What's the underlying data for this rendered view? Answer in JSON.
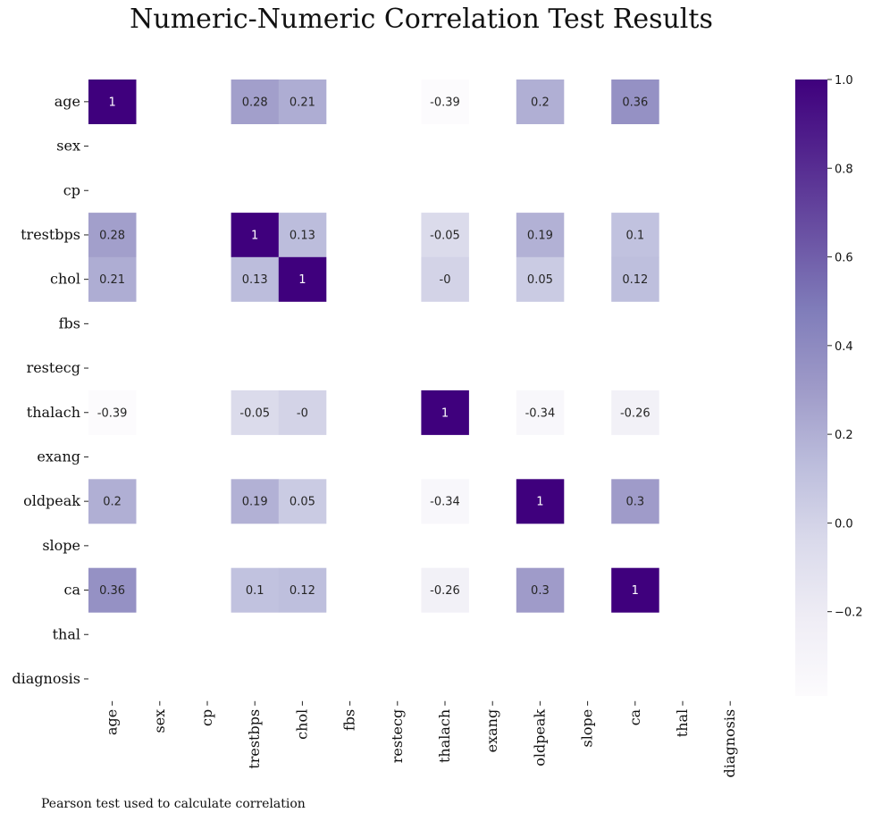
{
  "chart_data": {
    "type": "heatmap",
    "title": "Numeric-Numeric Correlation Test Results",
    "caption": "Pearson test used to calculate correlation",
    "variables": [
      "age",
      "sex",
      "cp",
      "trestbps",
      "chol",
      "fbs",
      "restecg",
      "thalach",
      "exang",
      "oldpeak",
      "slope",
      "ca",
      "thal",
      "diagnosis"
    ],
    "matrix": [
      [
        1,
        null,
        null,
        0.28,
        0.21,
        null,
        null,
        -0.39,
        null,
        0.2,
        null,
        0.36,
        null,
        null
      ],
      [
        null,
        null,
        null,
        null,
        null,
        null,
        null,
        null,
        null,
        null,
        null,
        null,
        null,
        null
      ],
      [
        null,
        null,
        null,
        null,
        null,
        null,
        null,
        null,
        null,
        null,
        null,
        null,
        null,
        null
      ],
      [
        0.28,
        null,
        null,
        1,
        0.13,
        null,
        null,
        -0.05,
        null,
        0.19,
        null,
        0.1,
        null,
        null
      ],
      [
        0.21,
        null,
        null,
        0.13,
        1,
        null,
        null,
        0,
        null,
        0.05,
        null,
        0.12,
        null,
        null
      ],
      [
        null,
        null,
        null,
        null,
        null,
        null,
        null,
        null,
        null,
        null,
        null,
        null,
        null,
        null
      ],
      [
        null,
        null,
        null,
        null,
        null,
        null,
        null,
        null,
        null,
        null,
        null,
        null,
        null,
        null
      ],
      [
        -0.39,
        null,
        null,
        -0.05,
        0,
        null,
        null,
        1,
        null,
        -0.34,
        null,
        -0.26,
        null,
        null
      ],
      [
        null,
        null,
        null,
        null,
        null,
        null,
        null,
        null,
        null,
        null,
        null,
        null,
        null,
        null
      ],
      [
        0.2,
        null,
        null,
        0.19,
        0.05,
        null,
        null,
        -0.34,
        null,
        1,
        null,
        0.3,
        null,
        null
      ],
      [
        null,
        null,
        null,
        null,
        null,
        null,
        null,
        null,
        null,
        null,
        null,
        null,
        null,
        null
      ],
      [
        0.36,
        null,
        null,
        0.1,
        0.12,
        null,
        null,
        -0.26,
        null,
        0.3,
        null,
        1,
        null,
        null
      ],
      [
        null,
        null,
        null,
        null,
        null,
        null,
        null,
        null,
        null,
        null,
        null,
        null,
        null,
        null
      ],
      [
        null,
        null,
        null,
        null,
        null,
        null,
        null,
        null,
        null,
        null,
        null,
        null,
        null,
        null
      ]
    ],
    "colorbar": {
      "colormap": "Purples",
      "min": -0.39,
      "max": 1,
      "ticks": [
        1.0,
        0.8,
        0.6,
        0.4,
        0.2,
        0.0,
        -0.2
      ],
      "tick_labels": [
        "1.0",
        "0.8",
        "0.6",
        "0.4",
        "0.2",
        "0.0",
        "−0.2"
      ],
      "colors": [
        "#fcfbfd",
        "#efedf5",
        "#dadaeb",
        "#bcbddc",
        "#9e9ac8",
        "#807dba",
        "#6a51a3",
        "#54278f",
        "#3f007d"
      ]
    }
  }
}
